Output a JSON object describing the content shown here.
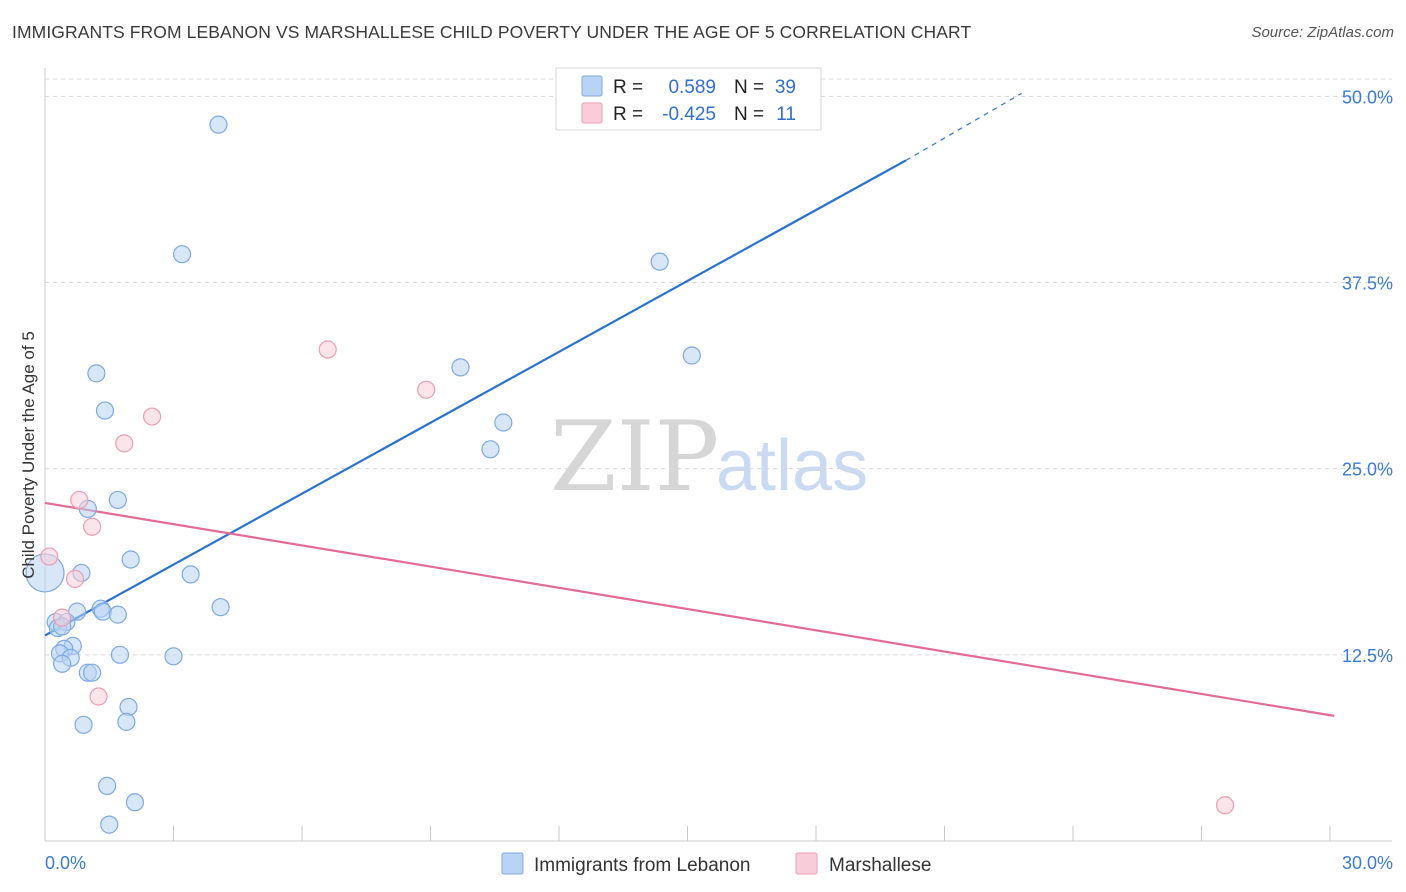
{
  "title": "IMMIGRANTS FROM LEBANON VS MARSHALLESE CHILD POVERTY UNDER THE AGE OF 5 CORRELATION CHART",
  "source": "Source: ZipAtlas.com",
  "watermark": {
    "zip": "ZIP",
    "atlas": "atlas"
  },
  "colors": {
    "blue_fill": "#b8d3f3",
    "blue_stroke": "#7ea9e3",
    "blue_line": "#2a73d1",
    "pink_fill": "#f8cdd9",
    "pink_stroke": "#ee9db5",
    "pink_line": "#e46b96",
    "axis_label": "#3a7bd5",
    "grid": "#d8d8d8"
  },
  "legend": {
    "rows": [
      {
        "r_label": "R =",
        "r_value": "0.589",
        "n_label": "N =",
        "n_value": "39"
      },
      {
        "r_label": "R =",
        "r_value": "-0.425",
        "n_label": "N =",
        "n_value": "11"
      }
    ]
  },
  "chart_data": {
    "type": "scatter",
    "title": "IMMIGRANTS FROM LEBANON VS MARSHALLESE CHILD POVERTY UNDER THE AGE OF 5 CORRELATION CHART",
    "xlabel": "",
    "ylabel": "Child Poverty Under the Age of 5",
    "xlim": [
      0,
      30
    ],
    "ylim": [
      0,
      51.5
    ],
    "x_tick_labels": [
      "0.0%",
      "30.0%"
    ],
    "y_ticks": [
      12.5,
      25.0,
      37.5,
      50.0
    ],
    "y_tick_labels": [
      "12.5%",
      "25.0%",
      "37.5%",
      "50.0%"
    ],
    "series": [
      {
        "name": "Immigrants from Lebanon",
        "color": "blue",
        "points": [
          {
            "x": 4.05,
            "y": 48.1
          },
          {
            "x": 3.2,
            "y": 39.4
          },
          {
            "x": 1.2,
            "y": 31.4
          },
          {
            "x": 1.4,
            "y": 28.9
          },
          {
            "x": 1.7,
            "y": 22.9
          },
          {
            "x": 1.0,
            "y": 22.3
          },
          {
            "x": 2.0,
            "y": 18.9
          },
          {
            "x": 0.85,
            "y": 18.0
          },
          {
            "x": 3.4,
            "y": 17.9
          },
          {
            "x": 0.0,
            "y": 18.0,
            "size": "large"
          },
          {
            "x": 1.3,
            "y": 15.6
          },
          {
            "x": 1.35,
            "y": 15.4
          },
          {
            "x": 0.75,
            "y": 15.4
          },
          {
            "x": 1.7,
            "y": 15.2
          },
          {
            "x": 4.1,
            "y": 15.7
          },
          {
            "x": 0.25,
            "y": 14.7
          },
          {
            "x": 0.5,
            "y": 14.7
          },
          {
            "x": 0.3,
            "y": 14.3
          },
          {
            "x": 0.65,
            "y": 13.1
          },
          {
            "x": 0.45,
            "y": 12.9
          },
          {
            "x": 0.35,
            "y": 12.6
          },
          {
            "x": 0.6,
            "y": 12.3
          },
          {
            "x": 0.4,
            "y": 11.9
          },
          {
            "x": 1.75,
            "y": 12.5
          },
          {
            "x": 3.0,
            "y": 12.4
          },
          {
            "x": 1.0,
            "y": 11.3
          },
          {
            "x": 1.1,
            "y": 11.3
          },
          {
            "x": 1.95,
            "y": 9.0
          },
          {
            "x": 1.9,
            "y": 8.0
          },
          {
            "x": 0.9,
            "y": 7.8
          },
          {
            "x": 1.45,
            "y": 3.7
          },
          {
            "x": 2.1,
            "y": 2.6
          },
          {
            "x": 1.5,
            "y": 1.1
          },
          {
            "x": 14.35,
            "y": 38.9
          },
          {
            "x": 15.1,
            "y": 32.6
          },
          {
            "x": 9.7,
            "y": 31.8
          },
          {
            "x": 10.7,
            "y": 28.1
          },
          {
            "x": 10.4,
            "y": 26.3
          },
          {
            "x": 0.4,
            "y": 14.4
          }
        ],
        "trend": {
          "x0": 0.0,
          "y0": 13.8,
          "x1": 20.1,
          "y1": 45.7,
          "dash_x1": 22.8,
          "dash_y1": 50.2
        }
      },
      {
        "name": "Marshallese",
        "color": "pink",
        "points": [
          {
            "x": 6.6,
            "y": 33.0
          },
          {
            "x": 8.9,
            "y": 30.3
          },
          {
            "x": 2.5,
            "y": 28.5
          },
          {
            "x": 1.85,
            "y": 26.7
          },
          {
            "x": 0.8,
            "y": 22.9
          },
          {
            "x": 1.1,
            "y": 21.1
          },
          {
            "x": 0.1,
            "y": 19.1
          },
          {
            "x": 0.7,
            "y": 17.6
          },
          {
            "x": 0.4,
            "y": 15.0
          },
          {
            "x": 1.25,
            "y": 9.7
          },
          {
            "x": 27.55,
            "y": 2.4
          }
        ],
        "trend": {
          "x0": 0.0,
          "y0": 22.7,
          "x1": 30.1,
          "y1": 8.4
        }
      }
    ]
  },
  "bottom_legend": [
    {
      "label": "Immigrants from Lebanon",
      "color": "blue"
    },
    {
      "label": "Marshallese",
      "color": "pink"
    }
  ]
}
